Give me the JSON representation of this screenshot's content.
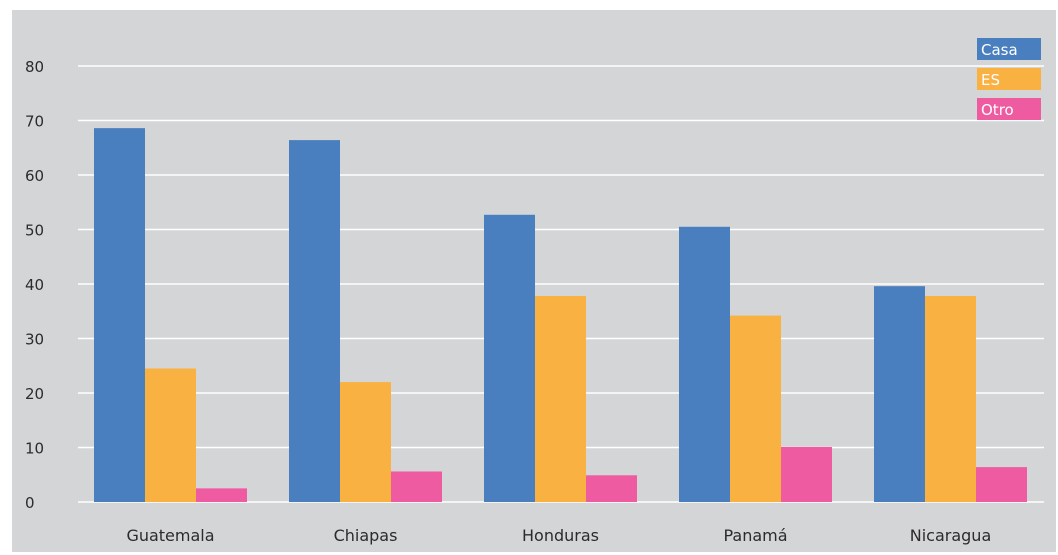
{
  "chart_data": {
    "type": "bar",
    "title": "",
    "xlabel": "",
    "ylabel": "",
    "categories": [
      "Guatemala",
      "Chiapas",
      "Honduras",
      "Panamá",
      "Nicaragua"
    ],
    "series": [
      {
        "name": "Casa",
        "color": "#4a7fbf",
        "values": [
          68.6,
          66.4,
          52.7,
          50.5,
          39.6
        ]
      },
      {
        "name": "ES",
        "color": "#f9b142",
        "values": [
          24.5,
          22.0,
          37.8,
          34.2,
          37.8
        ]
      },
      {
        "name": "Otro",
        "color": "#ef5ba1",
        "values": [
          2.5,
          5.6,
          4.9,
          10.1,
          6.4
        ]
      }
    ],
    "ylim": [
      0,
      80
    ],
    "yticks": [
      0,
      10,
      20,
      30,
      40,
      50,
      60,
      70,
      80
    ],
    "grid": true,
    "legend_position": "top-right",
    "background": "#d4d5d7",
    "gridline_color": "#ffffff"
  }
}
